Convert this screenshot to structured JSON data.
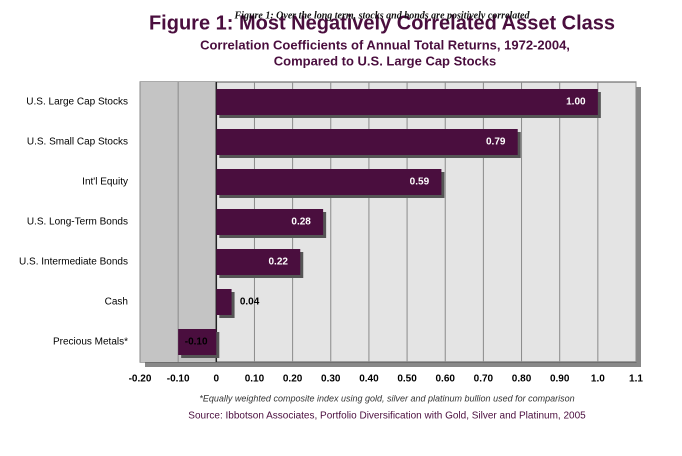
{
  "chart_data": {
    "type": "bar",
    "orientation": "horizontal",
    "overlay_title": "Figure 1: Over the long term, stocks and bonds are positively correlated",
    "title": "Figure 1: Most Negatively Correlated Asset Class",
    "subtitle": [
      "Correlation Coefficients of Annual Total Returns, 1972-2004,",
      "Compared to U.S. Large Cap Stocks"
    ],
    "categories": [
      "U.S. Large Cap Stocks",
      "U.S. Small Cap Stocks",
      "Int'l Equity",
      "U.S. Long-Term Bonds",
      "U.S. Intermediate Bonds",
      "Cash",
      "Precious Metals*"
    ],
    "values": [
      1.0,
      0.79,
      0.59,
      0.28,
      0.22,
      0.04,
      -0.1
    ],
    "value_labels": [
      "1.00",
      "0.79",
      "0.59",
      "0.28",
      "0.22",
      "0.04",
      "-0.10"
    ],
    "color": "#4a0e3e",
    "xlim": [
      -0.2,
      1.1
    ],
    "xticks": [
      {
        "value": -0.2,
        "label": "-0.20"
      },
      {
        "value": -0.1,
        "label": "-0.10"
      },
      0,
      {
        "value": 0.1,
        "label": "0.10"
      },
      {
        "value": 0.2,
        "label": "0.20"
      },
      {
        "value": 0.3,
        "label": "0.30"
      },
      {
        "value": 0.4,
        "label": "0.40"
      },
      {
        "value": 0.5,
        "label": "0.50"
      },
      {
        "value": 0.6,
        "label": "0.60"
      },
      {
        "value": 0.7,
        "label": "0.70"
      },
      {
        "value": 0.8,
        "label": "0.80"
      },
      {
        "value": 0.9,
        "label": "0.90"
      },
      {
        "value": 1.0,
        "label": "1.0"
      },
      1.1
    ],
    "grid": true,
    "footnote": "*Equally weighted composite index using gold, silver and platinum bullion used for comparison",
    "source": "Source: Ibbotson Associates, Portfolio Diversification with Gold, Silver and Platinum, 2005"
  }
}
